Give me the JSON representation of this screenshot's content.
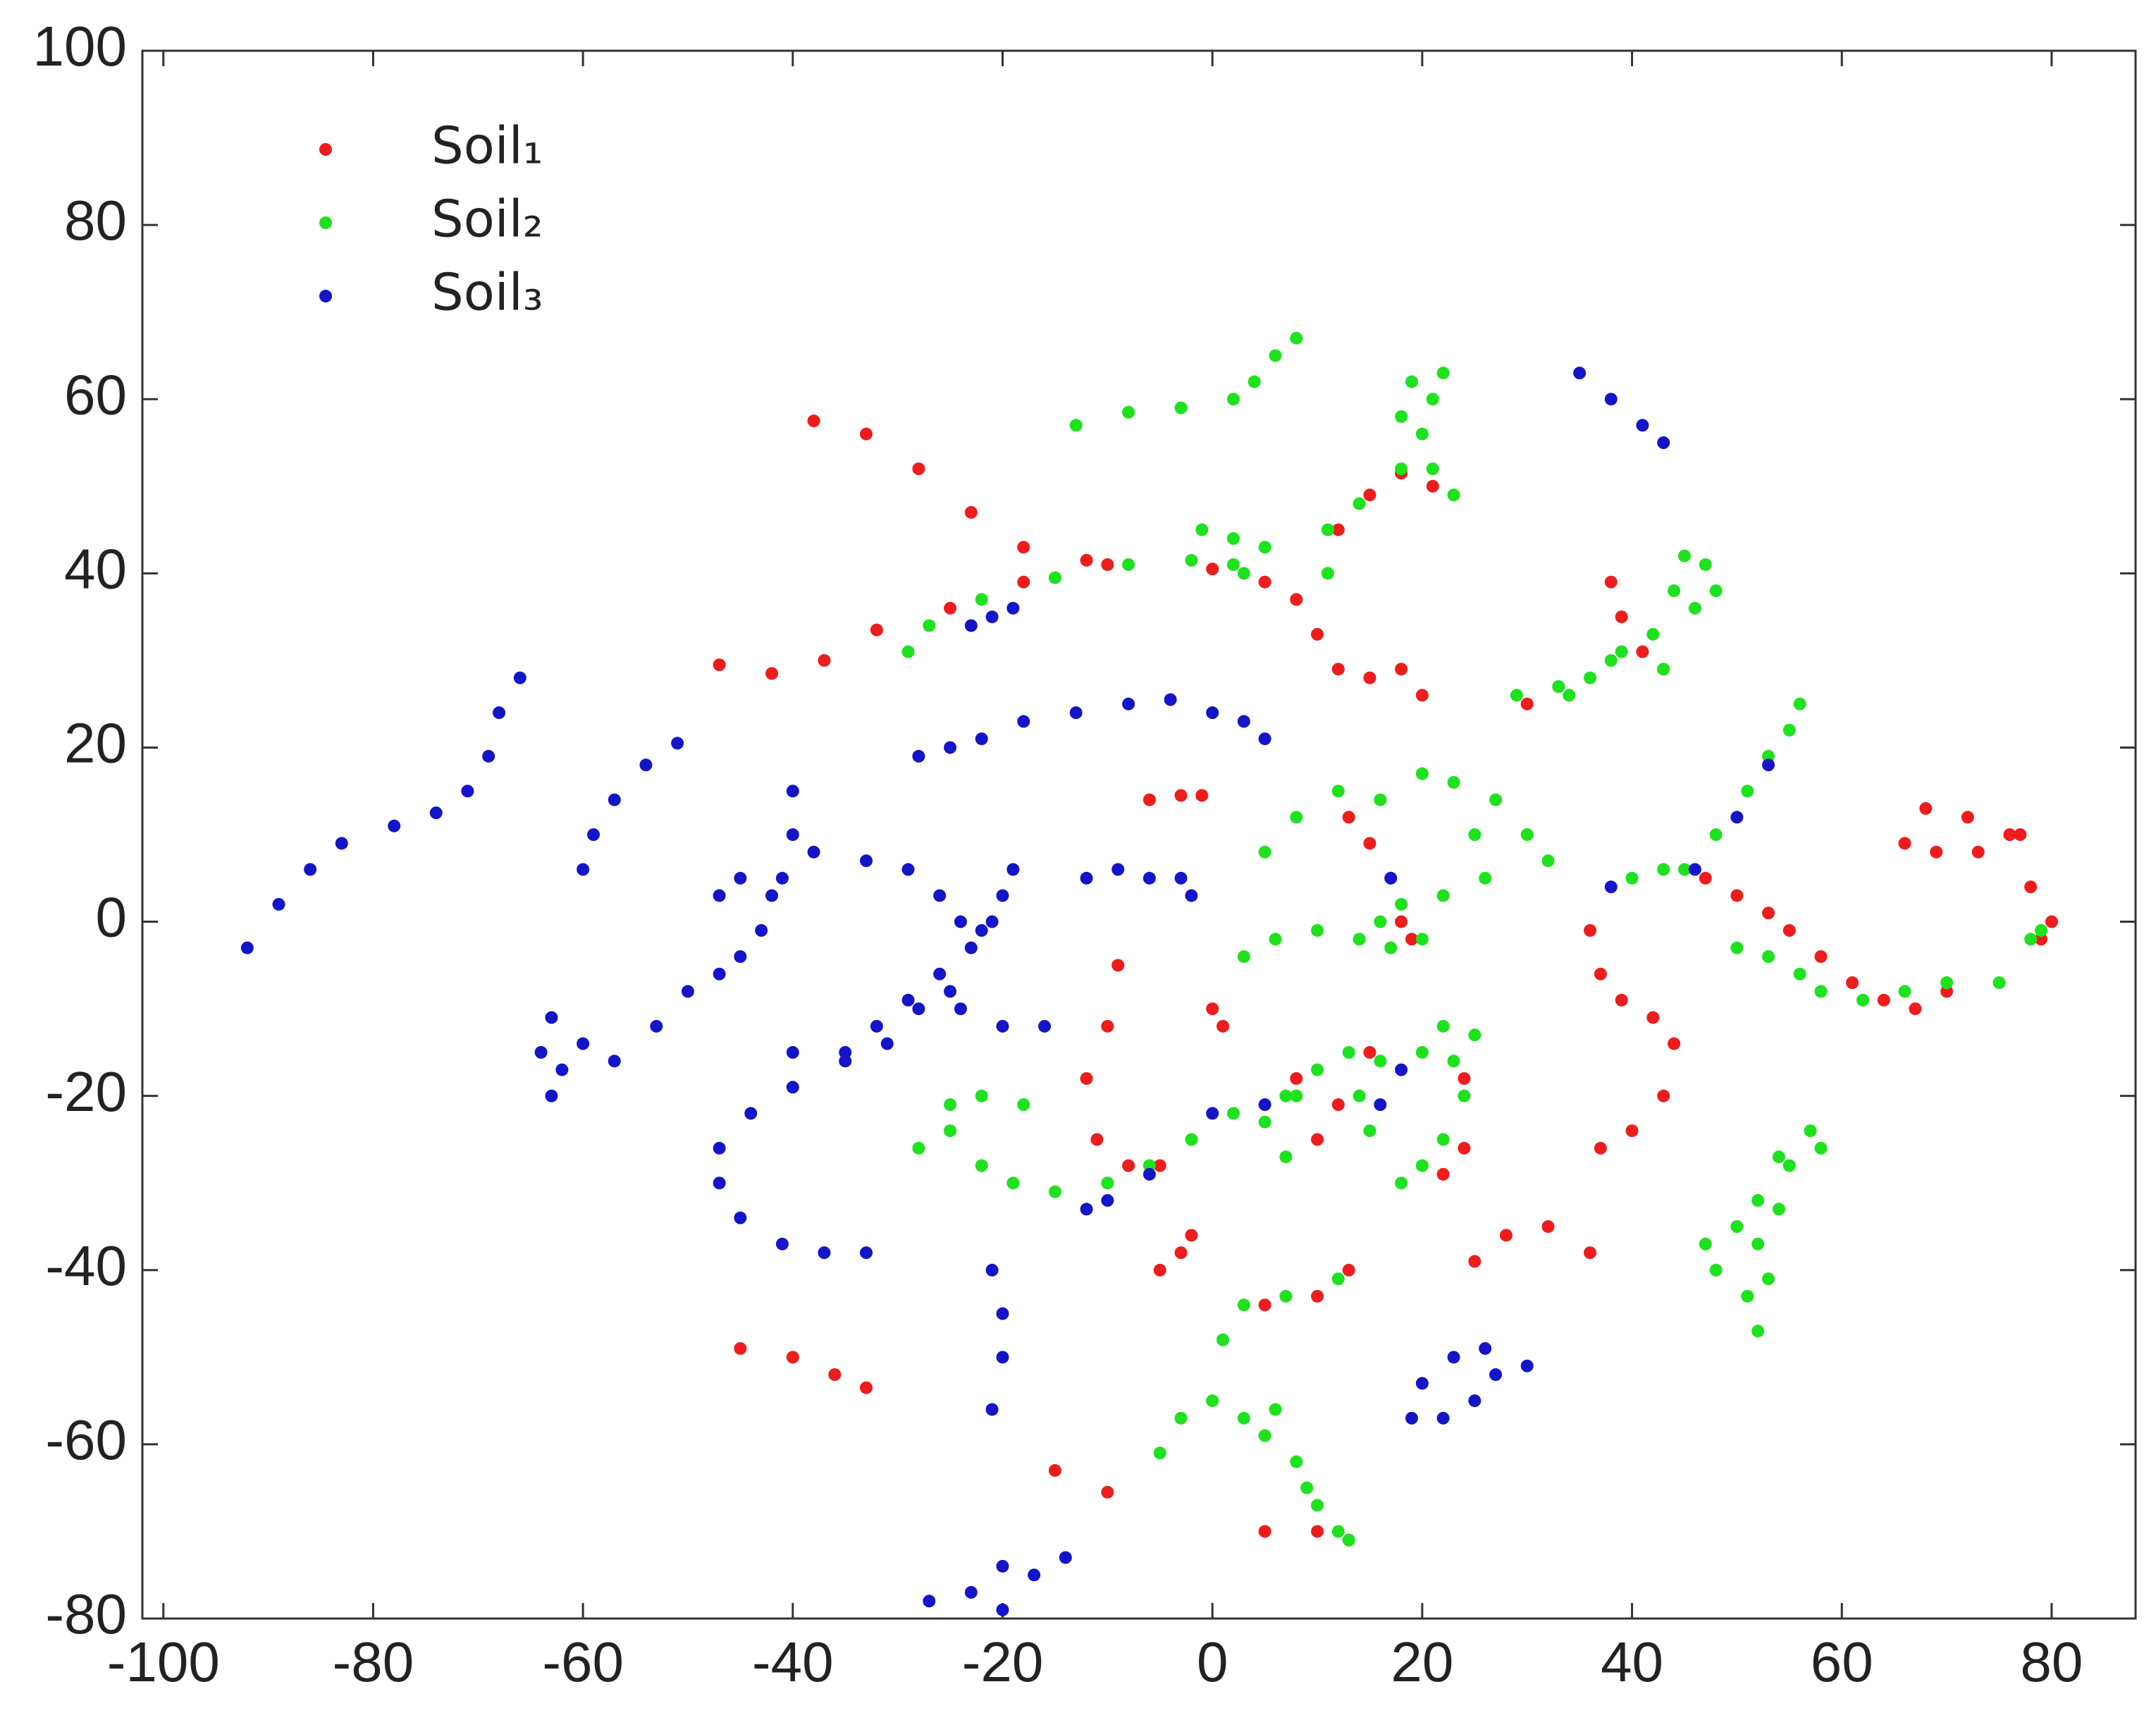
{
  "chart_data": {
    "type": "scatter",
    "xlim": [
      -102,
      88
    ],
    "ylim": [
      -80,
      100
    ],
    "xticks": [
      -100,
      -80,
      -60,
      -40,
      -20,
      0,
      20,
      40,
      60,
      80
    ],
    "yticks": [
      -80,
      -60,
      -40,
      -20,
      0,
      20,
      40,
      60,
      80,
      100
    ],
    "grid": false,
    "legend": "upper left",
    "series": [
      {
        "name": "Soil₁",
        "color": "#ee1c1c",
        "x": [
          -38,
          -33,
          -28,
          -23,
          -18,
          -12,
          -10,
          0,
          5,
          8,
          10,
          12,
          15,
          18,
          20,
          -47,
          -42,
          -37,
          -32,
          -25,
          -18,
          12,
          15,
          18,
          21,
          -6,
          -3,
          -1,
          36,
          37,
          39,
          42,
          44,
          43,
          40,
          37,
          47,
          50,
          53,
          55,
          58,
          61,
          64,
          67,
          70,
          66,
          68,
          72,
          76,
          78,
          80,
          79,
          69,
          73,
          77,
          38,
          39,
          41,
          43,
          -9,
          -10,
          -12,
          -11,
          -8,
          -5,
          0,
          1,
          -5,
          -3,
          -2,
          5,
          10,
          13,
          25,
          28,
          32,
          36,
          -45,
          -40,
          -36,
          -33,
          -15,
          -10,
          5,
          10,
          13,
          8,
          10,
          12,
          15,
          13,
          15,
          17,
          18,
          19,
          24,
          24,
          22,
          30,
          33
        ],
        "values": [
          57.5,
          56,
          52,
          47,
          43,
          41.5,
          41,
          40.5,
          39,
          37,
          33,
          29,
          28,
          29,
          26,
          29.5,
          28.5,
          30,
          33.5,
          36,
          39,
          45,
          49,
          51.5,
          50,
          14,
          14.5,
          14.5,
          -1,
          -6,
          -9,
          -11,
          -14,
          -20,
          -24,
          -26,
          5,
          3,
          1,
          -1,
          -4,
          -7,
          -9,
          -10,
          -8,
          9,
          13,
          12,
          10,
          4,
          0,
          -2,
          8,
          8,
          10,
          39,
          35,
          31,
          29,
          -5,
          -12,
          -18,
          -25,
          -28,
          -28,
          -10,
          -12,
          -40,
          -38,
          -36,
          -44,
          -43,
          -40,
          -39,
          -36,
          -35,
          -38,
          -49,
          -50,
          -52,
          -53.5,
          -63,
          -65.5,
          -70,
          -70,
          -71,
          -18,
          -25,
          -21,
          -15,
          12,
          9,
          5,
          0,
          -2,
          -18,
          -26,
          -29,
          25,
          27
        ]
      },
      {
        "name": "Soil₂",
        "color": "#1de21d",
        "x": [
          -13,
          -8,
          -3,
          2,
          4,
          6,
          8,
          -29,
          -27,
          -22,
          -15,
          -8,
          -2,
          2,
          -1,
          2,
          5,
          3,
          11,
          11,
          14,
          18,
          20,
          21,
          22,
          19,
          18,
          21,
          23,
          29,
          33,
          36,
          39,
          42,
          43,
          38,
          34,
          44,
          45,
          47,
          48,
          46,
          5,
          8,
          12,
          16,
          20,
          23,
          27,
          30,
          32,
          25,
          26,
          22,
          3,
          6,
          10,
          14,
          16,
          18,
          20,
          17,
          -28,
          -25,
          -22,
          -19,
          -15,
          -10,
          -6,
          -2,
          2,
          5,
          8,
          10,
          13,
          16,
          20,
          23,
          24,
          22,
          20,
          18,
          -25,
          -22,
          -18,
          7,
          7,
          14,
          15,
          40,
          43,
          45,
          50,
          53,
          56,
          58,
          62,
          66,
          70,
          75,
          48,
          51,
          53,
          55,
          56,
          52,
          51,
          48,
          47,
          50,
          52,
          54,
          57,
          58,
          55,
          54,
          52,
          53,
          -5,
          -3,
          0,
          3,
          5,
          8,
          10,
          12,
          13,
          9,
          6,
          1,
          3,
          7,
          12,
          22,
          25,
          78,
          79
        ],
        "values": [
          57,
          58.5,
          59,
          60,
          62,
          65,
          67,
          31,
          34,
          37,
          39.5,
          41,
          41.5,
          41,
          45,
          44,
          43,
          40,
          40,
          45,
          48,
          52,
          56,
          60,
          63,
          62,
          58,
          52,
          49,
          26,
          27,
          28,
          31,
          33,
          29,
          30,
          26,
          38,
          42,
          41,
          38,
          36,
          8,
          12,
          15,
          14,
          17,
          16,
          14,
          10,
          7,
          10,
          5,
          3,
          -4,
          -2,
          -1,
          -2,
          0,
          2,
          -2,
          -3,
          -26,
          -24,
          -28,
          -30,
          -31,
          -30,
          -28,
          -25,
          -22,
          -23,
          -20,
          -17,
          -15,
          -16,
          -15,
          -16,
          -20,
          -25,
          -28,
          -30,
          -21,
          -20,
          -21,
          -20,
          -27,
          -20,
          -24,
          5,
          6,
          6,
          -3,
          -4,
          -6,
          -8,
          -9,
          -8,
          -7,
          -7,
          10,
          15,
          19,
          22,
          25,
          -47,
          -43,
          -40,
          -37,
          -35,
          -32,
          -27,
          -24,
          -26,
          -28,
          -33,
          -37,
          -41,
          -61,
          -57,
          -55,
          -57,
          -59,
          -62,
          -67,
          -70,
          -71,
          -65,
          -56,
          -48,
          -44,
          -43,
          -41,
          -12,
          -13,
          -2,
          -1
        ]
      },
      {
        "name": "Soil₃",
        "color": "#1414c8",
        "x": [
          -92,
          -89,
          -86,
          -83,
          -78,
          -74,
          -71,
          -69,
          -68,
          -66,
          -60,
          -59,
          -57,
          -54,
          -51,
          -64,
          -63,
          -60,
          -57,
          -53,
          -50,
          -47,
          -45,
          -43,
          -41,
          -40,
          -40,
          -38,
          -33,
          -29,
          -26,
          -24,
          -22,
          -20,
          -19,
          -63,
          -62,
          -47,
          -45,
          -42,
          -21,
          -23,
          -26,
          -29,
          -32,
          -35,
          -40,
          -44,
          -47,
          -47,
          -45,
          -41,
          -37,
          -33,
          -40,
          -35,
          -31,
          -28,
          -25,
          -24,
          -20,
          -16,
          -28,
          -25,
          -22,
          -18,
          -13,
          -8,
          -4,
          0,
          3,
          5,
          -23,
          -21,
          -19,
          -12,
          -9,
          -6,
          -3,
          -2,
          17,
          35,
          38,
          41,
          43,
          19,
          20,
          23,
          26,
          27,
          25,
          22,
          30,
          -21,
          -20,
          -20,
          -21,
          -27,
          -23,
          -20,
          -20,
          -17,
          -14,
          -12,
          -10,
          -6,
          0,
          5,
          16,
          18,
          38,
          46,
          50,
          53
        ],
        "values": [
          -3,
          2,
          6,
          9,
          11,
          12.5,
          15,
          19,
          24,
          28,
          6,
          10,
          14,
          18,
          20.5,
          -15,
          -11,
          -14,
          -16,
          -12,
          -8,
          -6,
          -4,
          -1,
          5,
          10,
          15,
          8,
          7,
          6,
          3,
          0,
          -1,
          3,
          6,
          -20,
          -17,
          3,
          5,
          3,
          0,
          -3,
          -6,
          -9,
          -12,
          -15,
          -19,
          -22,
          -26,
          -30,
          -34,
          -37,
          -38,
          -38,
          -15,
          -16,
          -14,
          -10,
          -8,
          -10,
          -12,
          -12,
          19,
          20,
          21,
          23,
          24,
          25,
          25.5,
          24,
          23,
          21,
          34,
          35,
          36,
          5,
          6,
          5,
          5,
          3,
          5,
          63,
          60,
          57,
          55,
          -57,
          -53,
          -50,
          -49,
          -52,
          -55,
          -57,
          -51,
          -40,
          -45,
          -50,
          -56,
          -78,
          -77,
          -74,
          -79,
          -75,
          -73,
          -33,
          -32,
          -29,
          -22,
          -21,
          -21,
          -17,
          4,
          6,
          12,
          18
        ]
      }
    ]
  }
}
